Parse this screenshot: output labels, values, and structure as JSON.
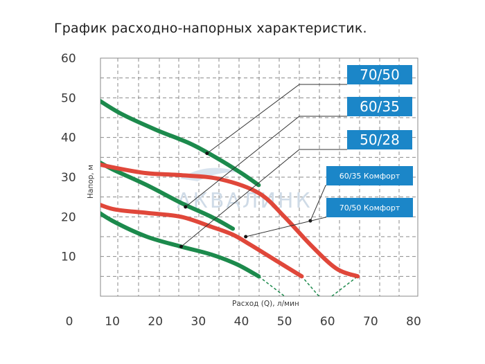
{
  "page_title": "График расходно-напорных характеристик.",
  "watermark": "АКВАЛИНК",
  "colors": {
    "green_series": "#1c8a4c",
    "red_series": "#e0473a",
    "label_box": "#1b86c8",
    "grid": "#8a8a8a",
    "extension": "#1c8a4c"
  },
  "chart_data": {
    "type": "line",
    "xlabel": "Расход (Q), л/мин",
    "ylabel": "Напор, м",
    "xlim": [
      0,
      80
    ],
    "ylim": [
      0,
      60
    ],
    "x_ticks": [
      "0",
      "10",
      "20",
      "30",
      "40",
      "50",
      "60",
      "70",
      "80"
    ],
    "y_ticks": [
      "10",
      "20",
      "30",
      "40",
      "50",
      "60"
    ],
    "grid": true,
    "series": [
      {
        "name": "70/50",
        "color": "green",
        "points": [
          [
            6,
            50
          ],
          [
            12,
            46
          ],
          [
            20,
            42
          ],
          [
            28,
            38.5
          ],
          [
            34,
            35
          ],
          [
            40,
            31
          ],
          [
            44,
            28
          ]
        ],
        "extension": [
          [
            0,
            53
          ],
          [
            6,
            50
          ]
        ],
        "marker": [
          32,
          36
        ]
      },
      {
        "name": "60/35",
        "color": "green",
        "points": [
          [
            5,
            35
          ],
          [
            10,
            32
          ],
          [
            18,
            28
          ],
          [
            26,
            23.5
          ],
          [
            33,
            20
          ],
          [
            38,
            17
          ]
        ],
        "extension": [
          [
            0,
            37.5
          ],
          [
            5,
            35
          ]
        ],
        "marker": [
          27,
          22.5
        ]
      },
      {
        "name": "50/28",
        "color": "green",
        "points": [
          [
            5,
            22.5
          ],
          [
            10,
            19
          ],
          [
            18,
            15
          ],
          [
            26,
            12.5
          ],
          [
            33,
            10.5
          ],
          [
            39,
            8
          ],
          [
            44,
            5
          ]
        ],
        "extension": [
          [
            0,
            26
          ],
          [
            5,
            22.5
          ],
          [
            44,
            5
          ],
          [
            50,
            0
          ]
        ],
        "marker": [
          26,
          12.5
        ]
      },
      {
        "name": "60/35 Комфорт",
        "color": "red",
        "points": [
          [
            4,
            34
          ],
          [
            10,
            32.5
          ],
          [
            18,
            31
          ],
          [
            26,
            30.5
          ],
          [
            35,
            29.5
          ],
          [
            44,
            26
          ],
          [
            50,
            20
          ],
          [
            56,
            13
          ],
          [
            62,
            7
          ],
          [
            67,
            5
          ]
        ],
        "marker": [
          56,
          19
        ]
      },
      {
        "name": "70/50 Комфорт",
        "color": "red",
        "points": [
          [
            4,
            24.5
          ],
          [
            10,
            22
          ],
          [
            18,
            21
          ],
          [
            26,
            20
          ],
          [
            33,
            17.5
          ],
          [
            38,
            15.5
          ],
          [
            42,
            13
          ],
          [
            48,
            9
          ],
          [
            54,
            5
          ]
        ],
        "marker": [
          41,
          15
        ]
      }
    ],
    "extensions_extra": [
      {
        "from": [
          61,
          0
        ],
        "to": [
          67,
          5
        ]
      },
      {
        "from": [
          58,
          0
        ],
        "to": [
          54,
          5
        ]
      }
    ],
    "annotations": [
      {
        "label": "70/50",
        "size": "large",
        "target": [
          32,
          36
        ]
      },
      {
        "label": "60/35",
        "size": "large",
        "target": [
          27,
          22.5
        ]
      },
      {
        "label": "50/28",
        "size": "large",
        "target": [
          26,
          12.5
        ]
      },
      {
        "label": "60/35 Комфорт",
        "size": "small",
        "target": [
          56,
          19
        ]
      },
      {
        "label": "70/50 Комфорт",
        "size": "small",
        "target": [
          41,
          15
        ]
      }
    ]
  }
}
